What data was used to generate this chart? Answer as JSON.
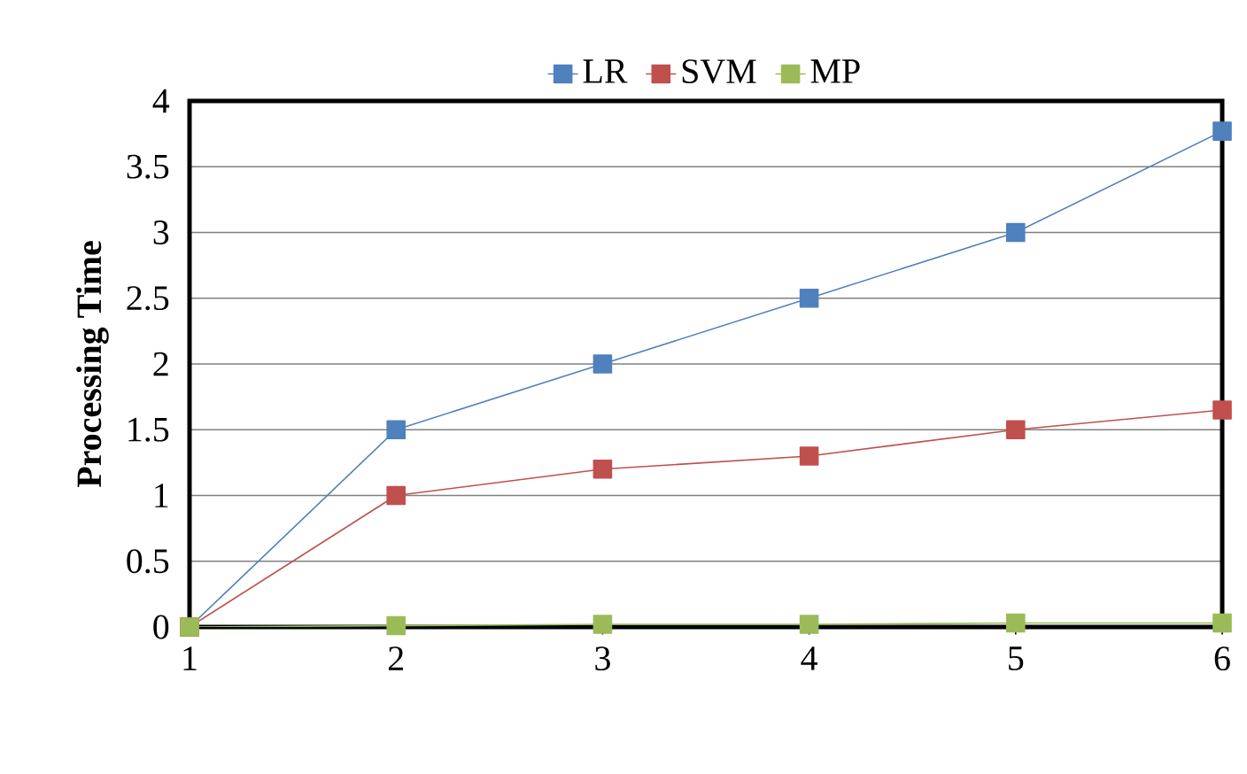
{
  "chart_data": {
    "type": "line",
    "ylabel": "Processing Time",
    "x": [
      1,
      2,
      3,
      4,
      5,
      6
    ],
    "xlim": [
      1,
      6
    ],
    "xticks": [
      1,
      2,
      3,
      4,
      5,
      6
    ],
    "ylim": [
      0,
      4
    ],
    "yticks": [
      0,
      0.5,
      1,
      1.5,
      2,
      2.5,
      3,
      3.5,
      4
    ],
    "grid": "y",
    "legend": "top",
    "marker": "square",
    "line_style": "solid",
    "series": [
      {
        "name": "LR",
        "color": "#4f81bd",
        "values": [
          0,
          1.5,
          2,
          2.5,
          3,
          3.77
        ]
      },
      {
        "name": "SVM",
        "color": "#c0504d",
        "values": [
          0,
          1,
          1.2,
          1.3,
          1.5,
          1.65
        ]
      },
      {
        "name": "MP",
        "color": "#9bbb59",
        "values": [
          0,
          0.01,
          0.02,
          0.02,
          0.03,
          0.03
        ]
      }
    ]
  }
}
